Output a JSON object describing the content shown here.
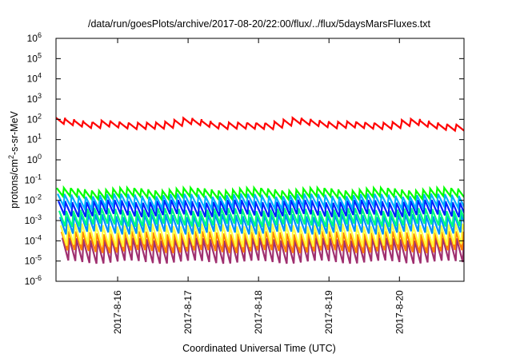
{
  "chart_data": {
    "type": "line",
    "title": "/data/run/goesPlots/archive/2017-08-20/22:00/flux/../flux/5daysMarsFluxes.txt",
    "xlabel": "Coordinated Universal Time (UTC)",
    "ylabel": "protons/cm²-s-sr-MeV",
    "y_scale": "log",
    "ylim_exponent": [
      -6,
      6
    ],
    "y_tick_exponents": [
      -6,
      -5,
      -4,
      -3,
      -2,
      -1,
      0,
      1,
      2,
      3,
      4,
      5,
      6
    ],
    "x_range_days": [
      "2017-8-15 ~03:00",
      "2017-8-20 ~22:00"
    ],
    "x_tick_labels": [
      "2017-8-16",
      "2017-8-17",
      "2017-8-18",
      "2017-8-19",
      "2017-8-20"
    ],
    "grid": "off",
    "legend": "none",
    "series": [
      {
        "color": "#ff0000",
        "sawtooth_period_hours": 3.1,
        "high_envelope": [
          [
            0.0,
            120
          ],
          [
            1.0,
            65
          ],
          [
            1.1,
            95
          ],
          [
            2.0,
            65
          ],
          [
            3.0,
            70
          ],
          [
            3.65,
            120
          ],
          [
            4.5,
            65
          ],
          [
            5.0,
            70
          ],
          [
            6.0,
            65
          ],
          [
            6.7,
            120
          ],
          [
            7.8,
            70
          ],
          [
            8.2,
            80
          ],
          [
            9.0,
            65
          ],
          [
            9.5,
            70
          ],
          [
            10.0,
            110
          ],
          [
            10.6,
            70
          ],
          [
            11.0,
            55
          ]
        ],
        "low_ratio": 0.5
      },
      {
        "color": "#00ff00",
        "sawtooth_period_hours": 2.4,
        "high": 0.035,
        "low": 0.014
      },
      {
        "color": "#00b0ff",
        "sawtooth_period_hours": 2.4,
        "high": 0.018,
        "low": 0.0045
      },
      {
        "color": "#0020ff",
        "sawtooth_period_hours": 2.4,
        "high": 0.009,
        "low": 0.0018
      },
      {
        "color": "#00ff80",
        "sawtooth_period_hours": 2.4,
        "high": 0.0035,
        "low": 0.0006
      },
      {
        "color": "#0090ff",
        "sawtooth_period_hours": 2.4,
        "high": 0.0018,
        "low": 0.00025
      },
      {
        "color": "#ffff40",
        "sawtooth_period_hours": 2.4,
        "high": 0.0006,
        "low": 6e-05
      },
      {
        "color": "#ff8000",
        "sawtooth_period_hours": 2.4,
        "high": 0.00025,
        "low": 3e-05
      },
      {
        "color": "#a03070",
        "sawtooth_period_hours": 2.4,
        "high": 0.00012,
        "low": 9e-06
      }
    ],
    "colors": {
      "axis": "#000000",
      "background": "#ffffff"
    }
  }
}
